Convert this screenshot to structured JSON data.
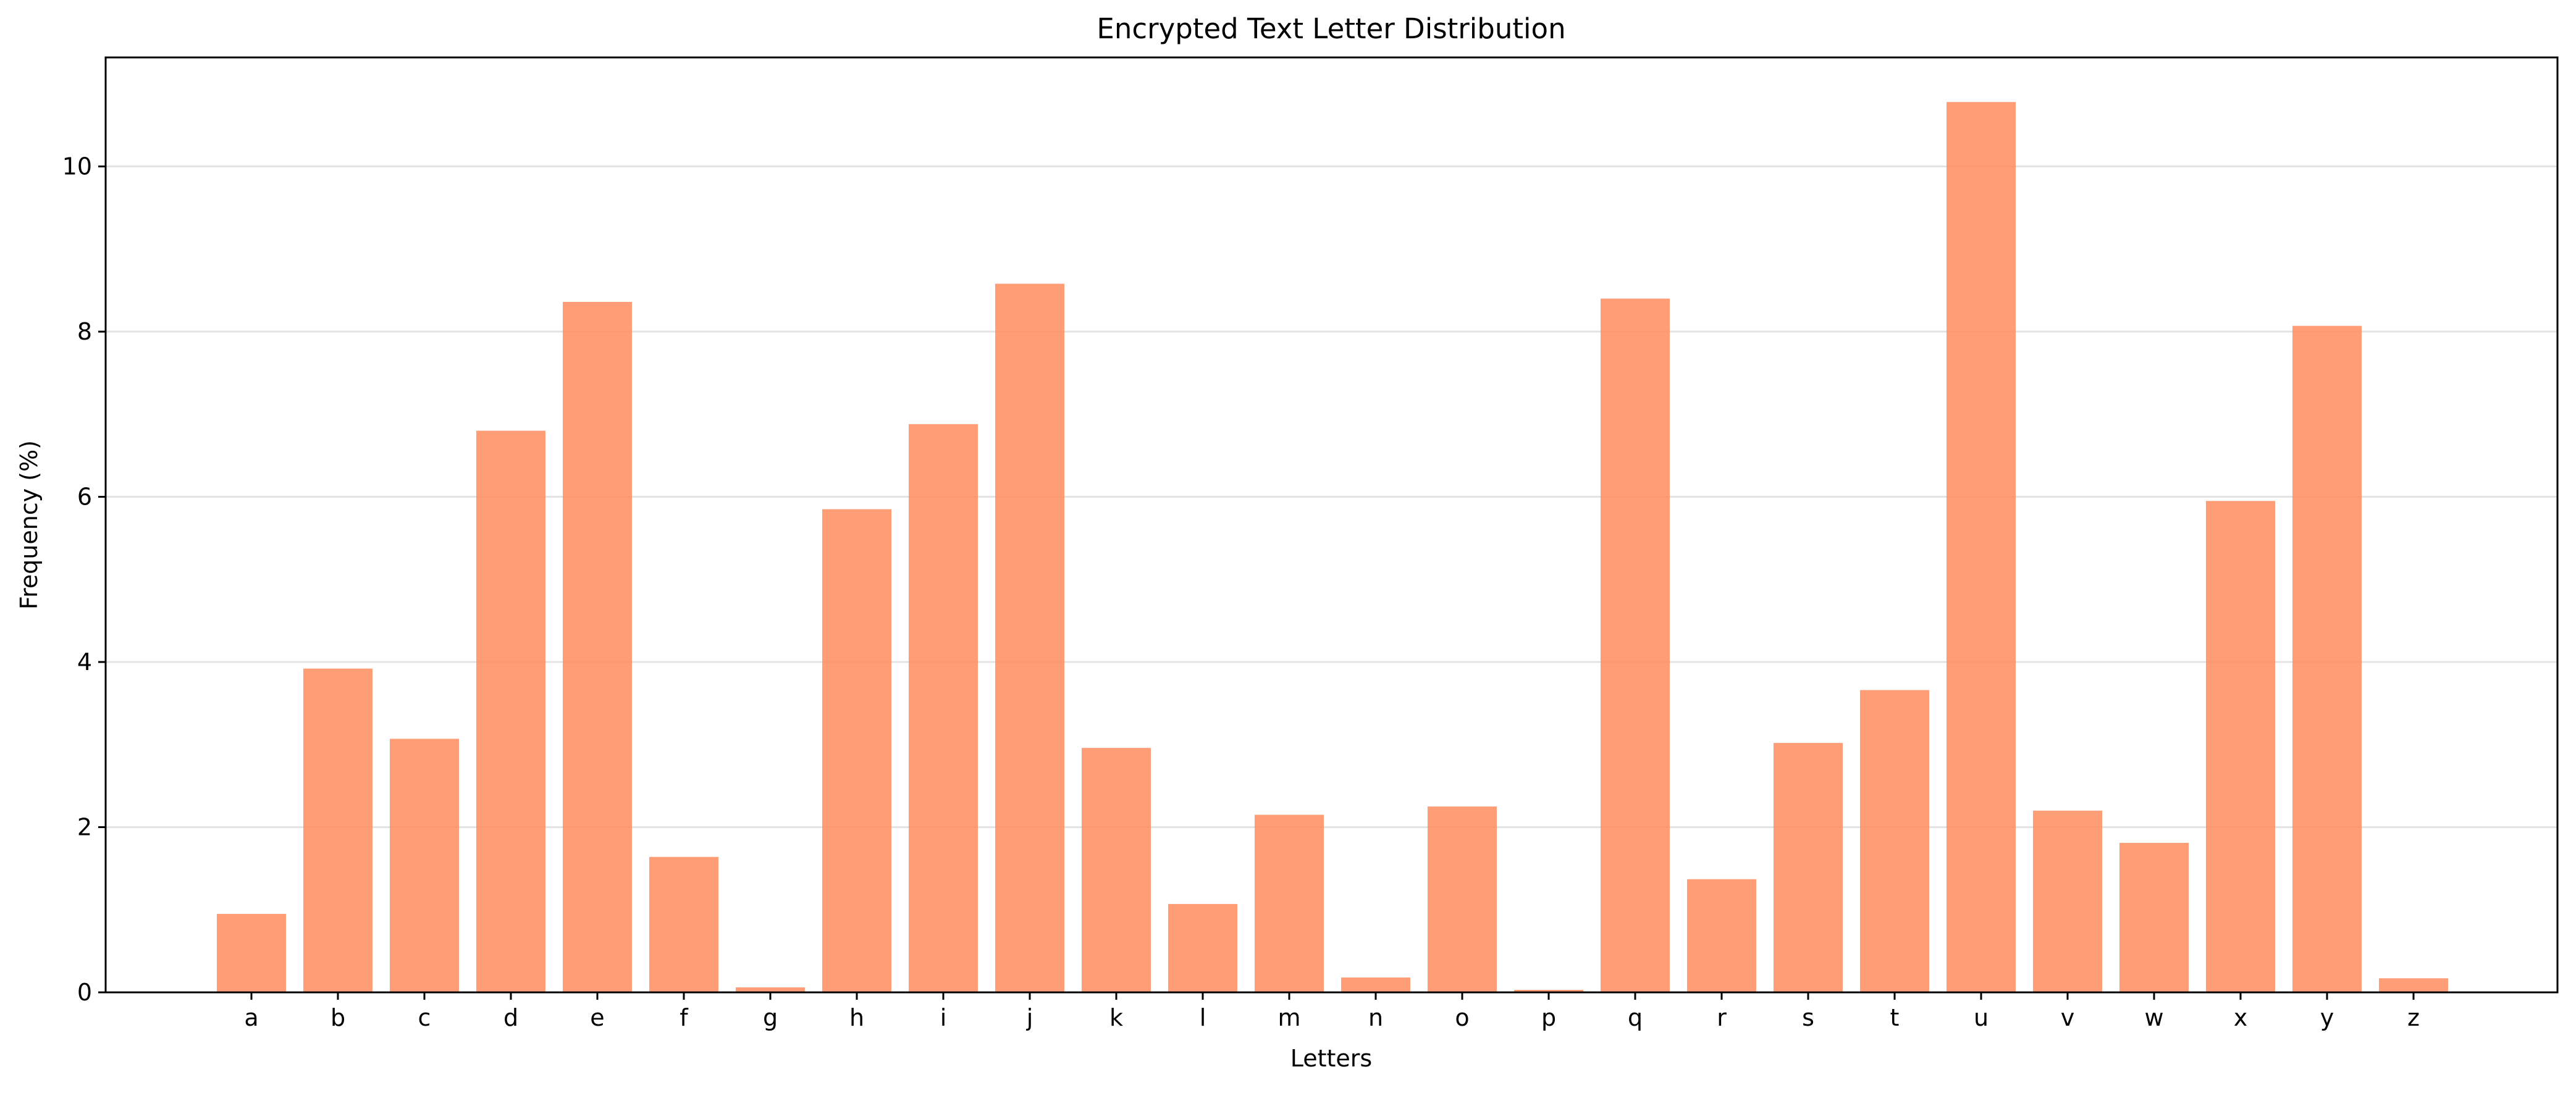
{
  "chart_data": {
    "type": "bar",
    "title": "Encrypted Text Letter Distribution",
    "xlabel": "Letters",
    "ylabel": "Frequency (%)",
    "categories": [
      "a",
      "b",
      "c",
      "d",
      "e",
      "f",
      "g",
      "h",
      "i",
      "j",
      "k",
      "l",
      "m",
      "n",
      "o",
      "p",
      "q",
      "r",
      "s",
      "t",
      "u",
      "v",
      "w",
      "x",
      "y",
      "z"
    ],
    "values": [
      0.95,
      3.92,
      3.07,
      6.8,
      8.36,
      1.64,
      0.06,
      5.85,
      6.88,
      8.58,
      2.96,
      1.07,
      2.15,
      0.18,
      2.25,
      0.03,
      8.4,
      1.37,
      3.02,
      3.66,
      10.78,
      2.2,
      1.81,
      5.95,
      8.07,
      0.17
    ],
    "ylim": [
      0,
      11.32
    ],
    "yticks": [
      0,
      2,
      4,
      6,
      8,
      10
    ],
    "grid": "horizontal",
    "bar_color": "#ff8c5f",
    "bar_opacity": 0.85
  }
}
